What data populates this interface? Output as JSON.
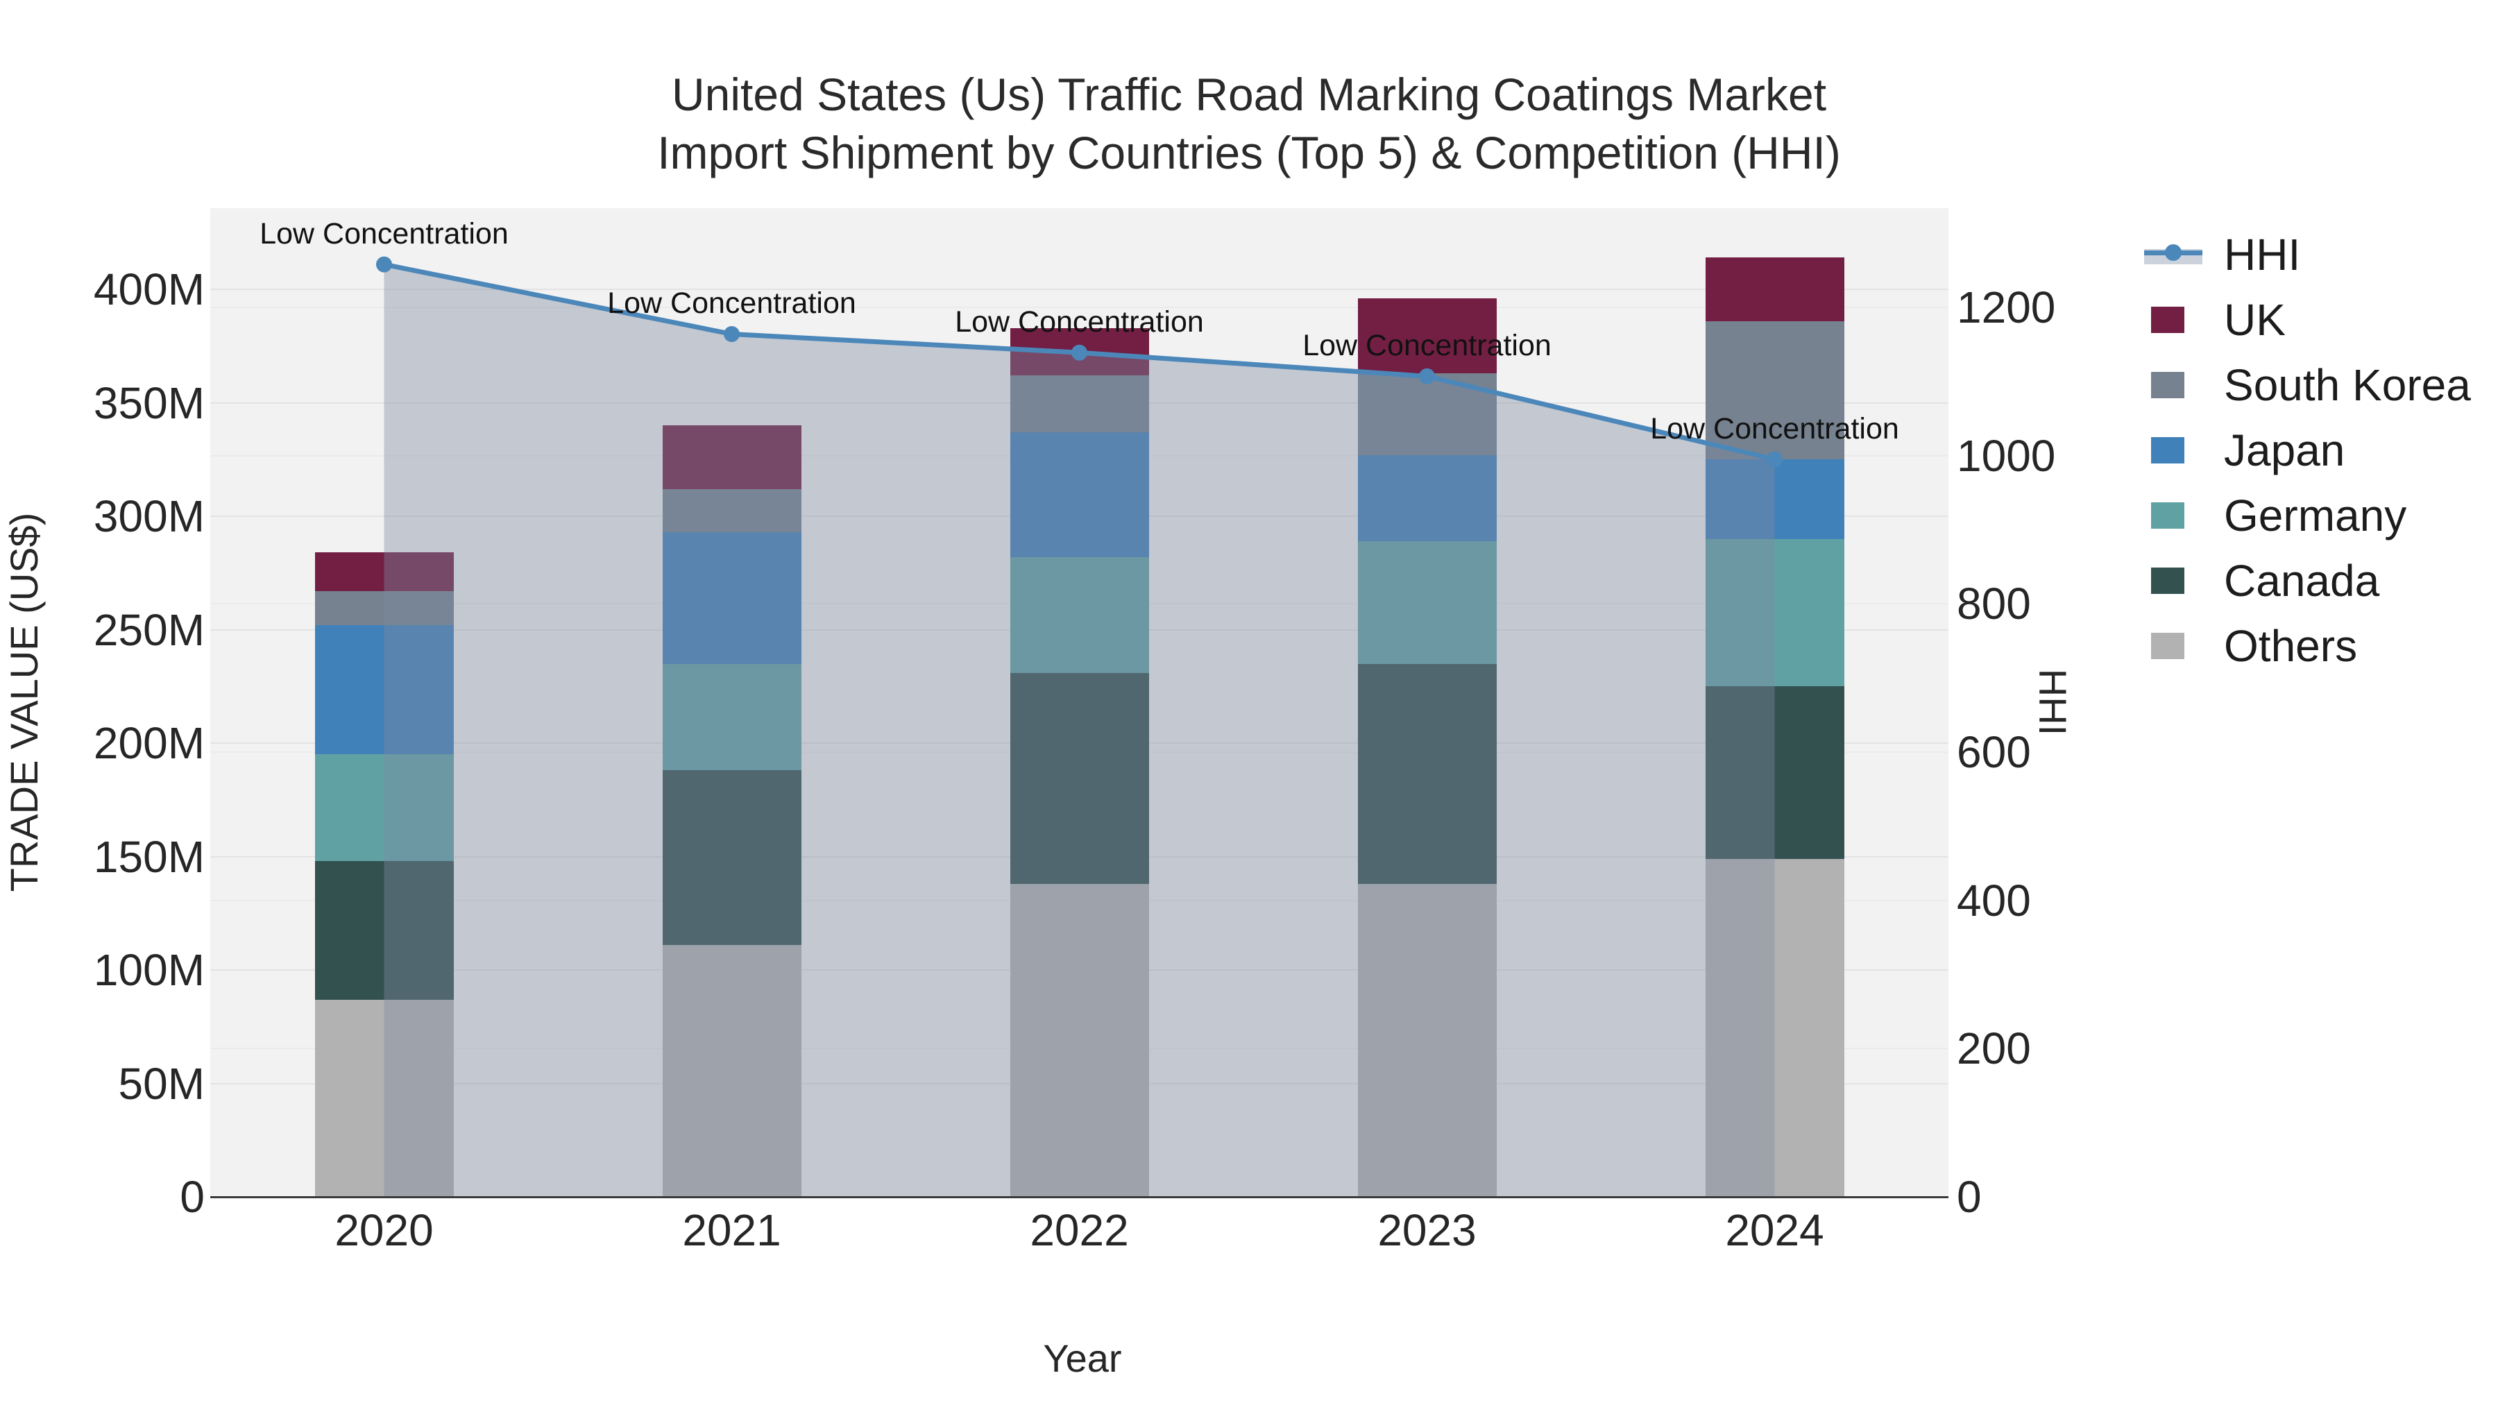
{
  "title": {
    "line1": "United States (Us) Traffic Road Marking Coatings Market",
    "line2": "Import Shipment by Countries (Top 5) & Competition (HHI)"
  },
  "chart_data": {
    "type": "bar",
    "subtype": "stacked-bar-with-line-overlay",
    "categories": [
      "2020",
      "2021",
      "2022",
      "2023",
      "2024"
    ],
    "xlabel": "Year",
    "y_left": {
      "label": "TRADE VALUE (US$)",
      "ticks": [
        "0",
        "50M",
        "100M",
        "150M",
        "200M",
        "250M",
        "300M",
        "350M",
        "400M"
      ],
      "tick_values_musd": [
        0,
        50,
        100,
        150,
        200,
        250,
        300,
        350,
        400
      ],
      "range_musd": [
        0,
        436
      ],
      "grid": "on"
    },
    "y_right": {
      "label": "HHI",
      "ticks": [
        "0",
        "200",
        "400",
        "600",
        "800",
        "1000",
        "1200"
      ],
      "tick_values": [
        0,
        200,
        400,
        600,
        800,
        1000,
        1200
      ],
      "range": [
        0,
        1334
      ],
      "grid": "on"
    },
    "series": [
      {
        "name": "Others",
        "color": "#b2b2b2",
        "values_musd": [
          87,
          111,
          138,
          138,
          149
        ]
      },
      {
        "name": "Canada",
        "color": "#32514f",
        "values_musd": [
          61,
          77,
          93,
          97,
          76
        ]
      },
      {
        "name": "Germany",
        "color": "#60a2a3",
        "values_musd": [
          47,
          47,
          51,
          54,
          65
        ]
      },
      {
        "name": "Japan",
        "color": "#4181ba",
        "values_musd": [
          57,
          58,
          55,
          38,
          35
        ]
      },
      {
        "name": "South Korea",
        "color": "#76828f",
        "values_musd": [
          15,
          19,
          25,
          36,
          61
        ]
      },
      {
        "name": "UK",
        "color": "#731f44",
        "values_musd": [
          17,
          28,
          21,
          33,
          28
        ]
      }
    ],
    "stack_totals_musd": [
      284,
      340,
      383,
      396,
      414
    ],
    "stack_order_bottom_to_top": [
      "Others",
      "Canada",
      "Germany",
      "Japan",
      "South Korea",
      "UK"
    ],
    "hhi_line": {
      "name": "HHI",
      "color": "#4c87ba",
      "fill_color": "rgba(124,138,160,0.40)",
      "values": [
        1258,
        1164,
        1139,
        1107,
        995
      ],
      "annotations": [
        "Low Concentration",
        "Low Concentration",
        "Low Concentration",
        "Low Concentration",
        "Low Concentration"
      ]
    },
    "legend_order": [
      "HHI",
      "UK",
      "South Korea",
      "Japan",
      "Germany",
      "Canada",
      "Others"
    ],
    "legend_position": "right"
  },
  "style_colors": {
    "plot_background": "#f2f2f2",
    "page_background": "#ffffff",
    "gridline_left": "#e3e3e3",
    "gridline_right": "#ebebeb",
    "x_axis_spine": "#3b3b3b",
    "text": "#262626"
  }
}
